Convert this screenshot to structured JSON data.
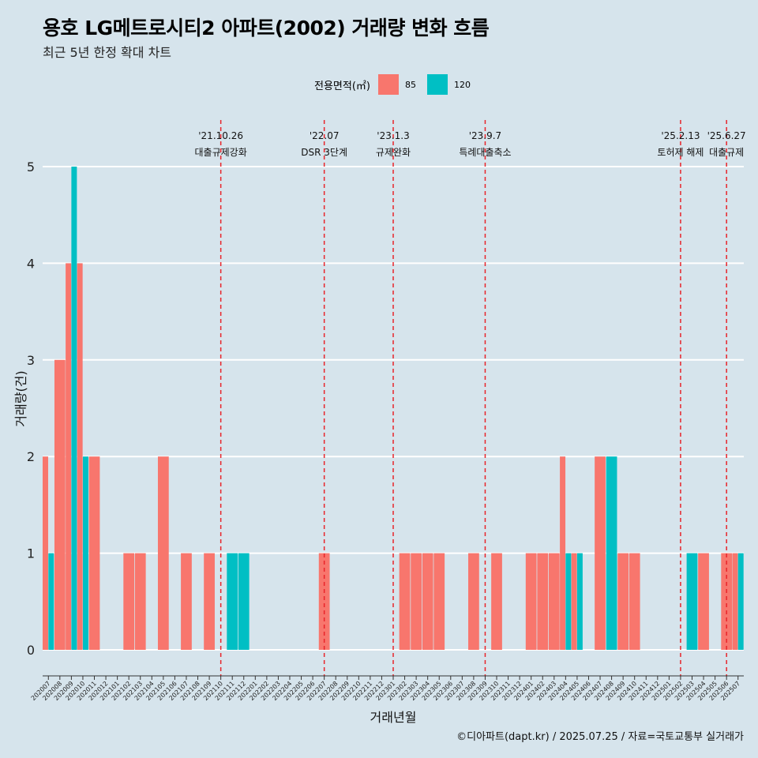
{
  "title": "용호 LG메트로시티2 아파트(2002) 거래량 변화 흐름",
  "subtitle": "최근 5년 한정 확대 차트",
  "caption": "©디아파트(dapt.kr) / 2025.07.25 / 자료=국토교통부 실거래가",
  "legend": {
    "title": "전용면적(㎡)",
    "items": [
      {
        "label": "85",
        "color": "#f8766d"
      },
      {
        "label": "120",
        "color": "#00bfc4"
      }
    ]
  },
  "chart_data": {
    "type": "bar",
    "xlabel": "거래년월",
    "ylabel": "거래량(건)",
    "ylim": [
      0,
      5
    ],
    "yticks": [
      0,
      1,
      2,
      3,
      4,
      5
    ],
    "categories": [
      "202007",
      "202008",
      "202009",
      "202010",
      "202011",
      "202012",
      "202101",
      "202102",
      "202103",
      "202104",
      "202105",
      "202106",
      "202107",
      "202108",
      "202109",
      "202110",
      "202111",
      "202112",
      "202201",
      "202202",
      "202203",
      "202204",
      "202205",
      "202206",
      "202207",
      "202208",
      "202209",
      "202210",
      "202211",
      "202212",
      "202301",
      "202302",
      "202303",
      "202304",
      "202305",
      "202306",
      "202307",
      "202308",
      "202309",
      "202310",
      "202311",
      "202312",
      "202401",
      "202402",
      "202403",
      "202404",
      "202405",
      "202406",
      "202407",
      "202408",
      "202409",
      "202410",
      "202411",
      "202412",
      "202501",
      "202502",
      "202503",
      "202504",
      "202505",
      "202506",
      "202507"
    ],
    "series": [
      {
        "name": "85",
        "color": "#f8766d",
        "values": [
          2,
          3,
          4,
          4,
          2,
          0,
          0,
          1,
          1,
          0,
          2,
          0,
          1,
          0,
          1,
          0,
          0,
          0,
          0,
          0,
          0,
          0,
          0,
          0,
          1,
          0,
          0,
          0,
          0,
          0,
          0,
          1,
          1,
          1,
          1,
          0,
          0,
          1,
          0,
          1,
          0,
          0,
          1,
          1,
          1,
          2,
          1,
          0,
          2,
          0,
          1,
          1,
          0,
          0,
          0,
          0,
          0,
          1,
          0,
          1,
          1
        ]
      },
      {
        "name": "120",
        "color": "#00bfc4",
        "values": [
          1,
          0,
          5,
          2,
          0,
          0,
          0,
          0,
          0,
          0,
          0,
          0,
          0,
          0,
          0,
          0,
          1,
          1,
          0,
          0,
          0,
          0,
          0,
          0,
          0,
          0,
          0,
          0,
          0,
          0,
          0,
          0,
          0,
          0,
          0,
          0,
          0,
          0,
          0,
          0,
          0,
          0,
          0,
          0,
          0,
          1,
          1,
          0,
          0,
          2,
          0,
          0,
          0,
          0,
          0,
          0,
          1,
          0,
          0,
          0,
          1
        ]
      }
    ],
    "annotations": [
      {
        "x": "202110",
        "date": "'21.10.26",
        "label": "대출규제강화"
      },
      {
        "x": "202207",
        "date": "'22.07",
        "label": "DSR 3단계"
      },
      {
        "x": "202301",
        "date": "'23.1.3",
        "label": "규제완화"
      },
      {
        "x": "202309",
        "date": "'23.9.7",
        "label": "특례대출축소"
      },
      {
        "x": "202502",
        "date": "'25.2.13",
        "label": "토허제 해제"
      },
      {
        "x": "202506",
        "date": "'25.6.27",
        "label": "대출규제"
      }
    ]
  }
}
